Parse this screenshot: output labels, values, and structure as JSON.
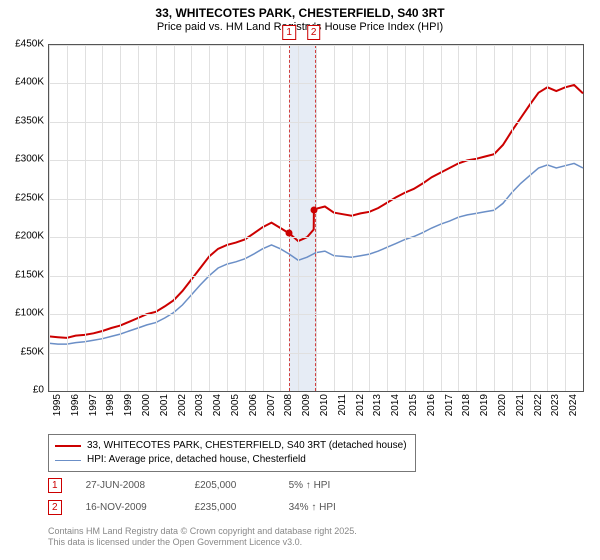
{
  "title": "33, WHITECOTES PARK, CHESTERFIELD, S40 3RT",
  "subtitle": "Price paid vs. HM Land Registry's House Price Index (HPI)",
  "chart": {
    "type": "line",
    "background_color": "#ffffff",
    "grid_color": "#e0e0e0",
    "border_color": "#555555",
    "y": {
      "min": 0,
      "max": 450000,
      "step": 50000,
      "labels": [
        "£0",
        "£50K",
        "£100K",
        "£150K",
        "£200K",
        "£250K",
        "£300K",
        "£350K",
        "£400K",
        "£450K"
      ],
      "label_fontsize": 10
    },
    "x": {
      "min": 1995,
      "max": 2025,
      "labels": [
        "1995",
        "1996",
        "1997",
        "1998",
        "1999",
        "2000",
        "2001",
        "2002",
        "2003",
        "2004",
        "2005",
        "2006",
        "2007",
        "2008",
        "2009",
        "2010",
        "2011",
        "2012",
        "2013",
        "2014",
        "2015",
        "2016",
        "2017",
        "2018",
        "2019",
        "2020",
        "2021",
        "2022",
        "2023",
        "2024"
      ],
      "label_fontsize": 10
    },
    "series": [
      {
        "name": "33, WHITECOTES PARK, CHESTERFIELD, S40 3RT (detached house)",
        "color": "#cc0000",
        "width": 2,
        "data": [
          [
            1995.0,
            71000
          ],
          [
            1995.5,
            70000
          ],
          [
            1996.0,
            69000
          ],
          [
            1996.5,
            72000
          ],
          [
            1997.0,
            73000
          ],
          [
            1997.5,
            75000
          ],
          [
            1998.0,
            78000
          ],
          [
            1998.5,
            82000
          ],
          [
            1999.0,
            85000
          ],
          [
            1999.5,
            90000
          ],
          [
            2000.0,
            95000
          ],
          [
            2000.5,
            100000
          ],
          [
            2001.0,
            103000
          ],
          [
            2001.5,
            110000
          ],
          [
            2002.0,
            118000
          ],
          [
            2002.5,
            130000
          ],
          [
            2003.0,
            145000
          ],
          [
            2003.5,
            160000
          ],
          [
            2004.0,
            175000
          ],
          [
            2004.5,
            185000
          ],
          [
            2005.0,
            190000
          ],
          [
            2005.5,
            193000
          ],
          [
            2006.0,
            197000
          ],
          [
            2006.5,
            205000
          ],
          [
            2007.0,
            213000
          ],
          [
            2007.5,
            219000
          ],
          [
            2008.0,
            212000
          ],
          [
            2008.49,
            205000
          ],
          [
            2008.5,
            205000
          ],
          [
            2009.0,
            195000
          ],
          [
            2009.5,
            200000
          ],
          [
            2009.87,
            210000
          ],
          [
            2009.88,
            235000
          ],
          [
            2010.0,
            237000
          ],
          [
            2010.5,
            240000
          ],
          [
            2011.0,
            232000
          ],
          [
            2011.5,
            230000
          ],
          [
            2012.0,
            228000
          ],
          [
            2012.5,
            231000
          ],
          [
            2013.0,
            233000
          ],
          [
            2013.5,
            238000
          ],
          [
            2014.0,
            245000
          ],
          [
            2014.5,
            252000
          ],
          [
            2015.0,
            258000
          ],
          [
            2015.5,
            263000
          ],
          [
            2016.0,
            270000
          ],
          [
            2016.5,
            278000
          ],
          [
            2017.0,
            284000
          ],
          [
            2017.5,
            290000
          ],
          [
            2018.0,
            296000
          ],
          [
            2018.5,
            300000
          ],
          [
            2019.0,
            302000
          ],
          [
            2019.5,
            305000
          ],
          [
            2020.0,
            308000
          ],
          [
            2020.5,
            320000
          ],
          [
            2021.0,
            338000
          ],
          [
            2021.5,
            355000
          ],
          [
            2022.0,
            372000
          ],
          [
            2022.5,
            388000
          ],
          [
            2023.0,
            395000
          ],
          [
            2023.5,
            390000
          ],
          [
            2024.0,
            395000
          ],
          [
            2024.5,
            398000
          ],
          [
            2025.0,
            387000
          ]
        ]
      },
      {
        "name": "HPI: Average price, detached house, Chesterfield",
        "color": "#6b8fc7",
        "width": 1.5,
        "data": [
          [
            1995.0,
            62000
          ],
          [
            1995.5,
            61000
          ],
          [
            1996.0,
            61000
          ],
          [
            1996.5,
            63000
          ],
          [
            1997.0,
            64000
          ],
          [
            1997.5,
            66000
          ],
          [
            1998.0,
            68000
          ],
          [
            1998.5,
            71000
          ],
          [
            1999.0,
            74000
          ],
          [
            1999.5,
            78000
          ],
          [
            2000.0,
            82000
          ],
          [
            2000.5,
            86000
          ],
          [
            2001.0,
            89000
          ],
          [
            2001.5,
            95000
          ],
          [
            2002.0,
            102000
          ],
          [
            2002.5,
            112000
          ],
          [
            2003.0,
            125000
          ],
          [
            2003.5,
            138000
          ],
          [
            2004.0,
            150000
          ],
          [
            2004.5,
            160000
          ],
          [
            2005.0,
            165000
          ],
          [
            2005.5,
            168000
          ],
          [
            2006.0,
            172000
          ],
          [
            2006.5,
            178000
          ],
          [
            2007.0,
            185000
          ],
          [
            2007.5,
            190000
          ],
          [
            2008.0,
            185000
          ],
          [
            2008.5,
            178000
          ],
          [
            2009.0,
            170000
          ],
          [
            2009.5,
            174000
          ],
          [
            2010.0,
            180000
          ],
          [
            2010.5,
            182000
          ],
          [
            2011.0,
            176000
          ],
          [
            2011.5,
            175000
          ],
          [
            2012.0,
            174000
          ],
          [
            2012.5,
            176000
          ],
          [
            2013.0,
            178000
          ],
          [
            2013.5,
            182000
          ],
          [
            2014.0,
            187000
          ],
          [
            2014.5,
            192000
          ],
          [
            2015.0,
            197000
          ],
          [
            2015.5,
            201000
          ],
          [
            2016.0,
            206000
          ],
          [
            2016.5,
            212000
          ],
          [
            2017.0,
            217000
          ],
          [
            2017.5,
            221000
          ],
          [
            2018.0,
            226000
          ],
          [
            2018.5,
            229000
          ],
          [
            2019.0,
            231000
          ],
          [
            2019.5,
            233000
          ],
          [
            2020.0,
            235000
          ],
          [
            2020.5,
            244000
          ],
          [
            2021.0,
            258000
          ],
          [
            2021.5,
            270000
          ],
          [
            2022.0,
            280000
          ],
          [
            2022.5,
            290000
          ],
          [
            2023.0,
            294000
          ],
          [
            2023.5,
            290000
          ],
          [
            2024.0,
            293000
          ],
          [
            2024.5,
            296000
          ],
          [
            2025.0,
            290000
          ]
        ]
      }
    ],
    "markers": [
      {
        "num": "1",
        "date_frac": 2008.49,
        "price": 205000
      },
      {
        "num": "2",
        "date_frac": 2009.87,
        "price": 235000
      }
    ],
    "band": {
      "start": 2008.49,
      "end": 2009.87,
      "fill": "#e6ecf5",
      "dash_color": "#d04040"
    }
  },
  "legend": {
    "items": [
      {
        "color": "#cc0000",
        "width": 2,
        "label": "33, WHITECOTES PARK, CHESTERFIELD, S40 3RT (detached house)"
      },
      {
        "color": "#6b8fc7",
        "width": 1.5,
        "label": "HPI: Average price, detached house, Chesterfield"
      }
    ]
  },
  "sales": [
    {
      "num": "1",
      "date": "27-JUN-2008",
      "price": "£205,000",
      "delta": "5% ↑ HPI"
    },
    {
      "num": "2",
      "date": "16-NOV-2009",
      "price": "£235,000",
      "delta": "34% ↑ HPI"
    }
  ],
  "footer": {
    "line1": "Contains HM Land Registry data © Crown copyright and database right 2025.",
    "line2": "This data is licensed under the Open Government Licence v3.0."
  }
}
